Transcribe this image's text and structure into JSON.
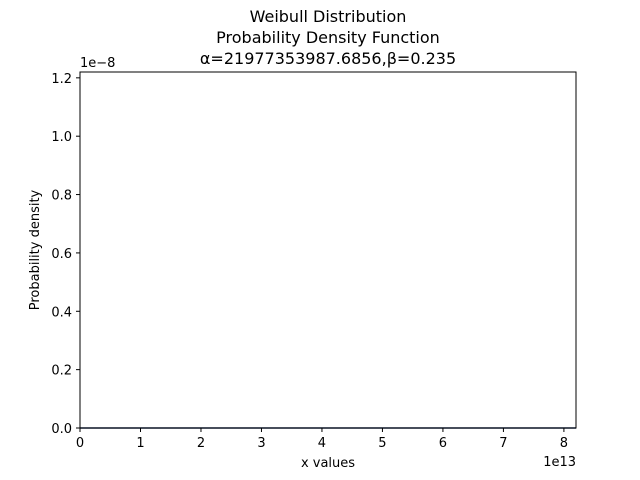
{
  "chart_data": {
    "type": "line",
    "title_lines": [
      "Weibull Distribution",
      "Probability Density Function",
      "α=21977353987.6856,β=0.235"
    ],
    "xlabel": "x values",
    "ylabel": "Probability density",
    "x_offset_label": "1e13",
    "y_offset_label": "1e−8",
    "x_ticks": [
      {
        "value": 0,
        "label": "0"
      },
      {
        "value": 1,
        "label": "1"
      },
      {
        "value": 2,
        "label": "2"
      },
      {
        "value": 3,
        "label": "3"
      },
      {
        "value": 4,
        "label": "4"
      },
      {
        "value": 5,
        "label": "5"
      },
      {
        "value": 6,
        "label": "6"
      },
      {
        "value": 7,
        "label": "7"
      },
      {
        "value": 8,
        "label": "8"
      }
    ],
    "y_ticks": [
      {
        "value": 0.0,
        "label": "0.0"
      },
      {
        "value": 0.2,
        "label": "0.2"
      },
      {
        "value": 0.4,
        "label": "0.4"
      },
      {
        "value": 0.6,
        "label": "0.6"
      },
      {
        "value": 0.8,
        "label": "0.8"
      },
      {
        "value": 1.0,
        "label": "1.0"
      },
      {
        "value": 1.2,
        "label": "1.2"
      }
    ],
    "xlim": [
      0,
      8.2
    ],
    "ylim": [
      0,
      1.22
    ],
    "grid": false,
    "series": [
      {
        "color": "#1f3b6e",
        "x": [
          0,
          0.5,
          1,
          2,
          3,
          4,
          5,
          6,
          7,
          8,
          8.2
        ],
        "y": [
          0,
          0,
          0,
          0,
          0,
          0,
          0,
          0,
          0,
          0,
          0
        ]
      }
    ]
  }
}
